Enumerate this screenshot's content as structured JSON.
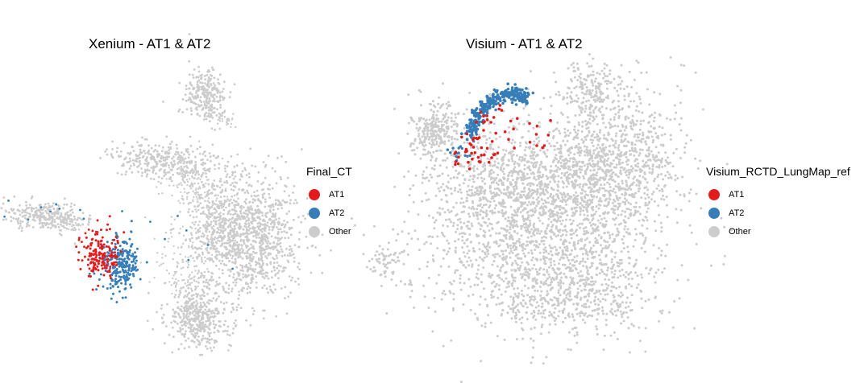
{
  "colors": {
    "AT1": "#e41a1c",
    "AT2": "#377eb8",
    "Other": "#cccccc"
  },
  "chart_data": [
    {
      "type": "scatter",
      "title": "Xenium - AT1 & AT2",
      "legend_title": "Final_CT",
      "legend_position": "right",
      "grid": false,
      "axes": "none",
      "series": [
        {
          "name": "AT1",
          "color": "#e41a1c"
        },
        {
          "name": "AT2",
          "color": "#377eb8"
        },
        {
          "name": "Other",
          "color": "#cccccc"
        }
      ]
    },
    {
      "type": "scatter",
      "title": "Visium - AT1 & AT2",
      "legend_title": "Visium_RCTD_LungMap_ref",
      "legend_position": "right",
      "grid": false,
      "axes": "none",
      "series": [
        {
          "name": "AT1",
          "color": "#e41a1c"
        },
        {
          "name": "AT2",
          "color": "#377eb8"
        },
        {
          "name": "Other",
          "color": "#cccccc"
        }
      ]
    }
  ]
}
